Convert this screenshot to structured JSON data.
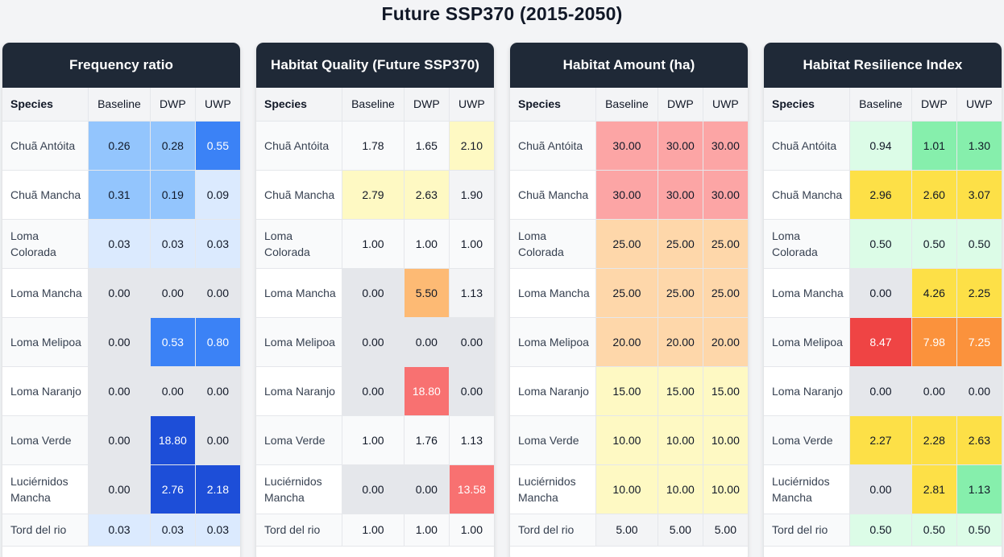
{
  "title": "Future SSP370 (2015-2050)",
  "columns": [
    "Species",
    "Baseline",
    "DWP",
    "UWP"
  ],
  "species": [
    "Chuã Antóita",
    "Chuã Mancha",
    "Loma Colorada",
    "Loma Mancha",
    "Loma Melipoa",
    "Loma Naranjo",
    "Loma Verde",
    "Luciérnidos Mancha",
    "Tord del rio"
  ],
  "panels": [
    {
      "title": "Frequency ratio",
      "rows": [
        {
          "values": [
            "0.26",
            "0.28",
            "0.55"
          ],
          "colors": [
            "#93c5fd",
            "#93c5fd",
            "#3b82f6"
          ]
        },
        {
          "values": [
            "0.31",
            "0.19",
            "0.09"
          ],
          "colors": [
            "#93c5fd",
            "#93c5fd",
            "#dbeafe"
          ]
        },
        {
          "values": [
            "0.03",
            "0.03",
            "0.03"
          ],
          "colors": [
            "#dbeafe",
            "#dbeafe",
            "#dbeafe"
          ]
        },
        {
          "values": [
            "0.00",
            "0.00",
            "0.00"
          ],
          "colors": [
            "#e5e7eb",
            "#e5e7eb",
            "#e5e7eb"
          ]
        },
        {
          "values": [
            "0.00",
            "0.53",
            "0.80"
          ],
          "colors": [
            "#e5e7eb",
            "#3b82f6",
            "#3b82f6"
          ]
        },
        {
          "values": [
            "0.00",
            "0.00",
            "0.00"
          ],
          "colors": [
            "#e5e7eb",
            "#e5e7eb",
            "#e5e7eb"
          ]
        },
        {
          "values": [
            "0.00",
            "18.80",
            "0.00"
          ],
          "colors": [
            "#e5e7eb",
            "#1d4ed8",
            "#e5e7eb"
          ]
        },
        {
          "values": [
            "0.00",
            "2.76",
            "2.18"
          ],
          "colors": [
            "#e5e7eb",
            "#1d4ed8",
            "#1d4ed8"
          ]
        },
        {
          "values": [
            "0.03",
            "0.03",
            "0.03"
          ],
          "colors": [
            "#dbeafe",
            "#dbeafe",
            "#dbeafe"
          ]
        }
      ]
    },
    {
      "title": "Habitat Quality (Future SSP370)",
      "rows": [
        {
          "values": [
            "1.78",
            "1.65",
            "2.10"
          ],
          "colors": [
            "#f9fafb",
            "#f9fafb",
            "#fef9c3"
          ]
        },
        {
          "values": [
            "2.79",
            "2.63",
            "1.90"
          ],
          "colors": [
            "#fef9c3",
            "#fef9c3",
            "#f3f4f6"
          ]
        },
        {
          "values": [
            "1.00",
            "1.00",
            "1.00"
          ],
          "colors": [
            "#f9fafb",
            "#f9fafb",
            "#f9fafb"
          ]
        },
        {
          "values": [
            "0.00",
            "5.50",
            "1.13"
          ],
          "colors": [
            "#e5e7eb",
            "#fdba74",
            "#f3f4f6"
          ]
        },
        {
          "values": [
            "0.00",
            "0.00",
            "0.00"
          ],
          "colors": [
            "#e5e7eb",
            "#e5e7eb",
            "#e5e7eb"
          ]
        },
        {
          "values": [
            "0.00",
            "18.80",
            "0.00"
          ],
          "colors": [
            "#e5e7eb",
            "#f87171",
            "#e5e7eb"
          ]
        },
        {
          "values": [
            "1.00",
            "1.76",
            "1.13"
          ],
          "colors": [
            "#f9fafb",
            "#f9fafb",
            "#f9fafb"
          ]
        },
        {
          "values": [
            "0.00",
            "0.00",
            "13.58"
          ],
          "colors": [
            "#e5e7eb",
            "#e5e7eb",
            "#f87171"
          ]
        },
        {
          "values": [
            "1.00",
            "1.00",
            "1.00"
          ],
          "colors": [
            "#f9fafb",
            "#f9fafb",
            "#f9fafb"
          ]
        }
      ]
    },
    {
      "title": "Habitat Amount (ha)",
      "rows": [
        {
          "values": [
            "30.00",
            "30.00",
            "30.00"
          ],
          "colors": [
            "#fca5a5",
            "#fca5a5",
            "#fca5a5"
          ]
        },
        {
          "values": [
            "30.00",
            "30.00",
            "30.00"
          ],
          "colors": [
            "#fca5a5",
            "#fca5a5",
            "#fca5a5"
          ]
        },
        {
          "values": [
            "25.00",
            "25.00",
            "25.00"
          ],
          "colors": [
            "#fed7aa",
            "#fed7aa",
            "#fed7aa"
          ]
        },
        {
          "values": [
            "25.00",
            "25.00",
            "25.00"
          ],
          "colors": [
            "#fed7aa",
            "#fed7aa",
            "#fed7aa"
          ]
        },
        {
          "values": [
            "20.00",
            "20.00",
            "20.00"
          ],
          "colors": [
            "#fed7aa",
            "#fed7aa",
            "#fed7aa"
          ]
        },
        {
          "values": [
            "15.00",
            "15.00",
            "15.00"
          ],
          "colors": [
            "#fef9c3",
            "#fef9c3",
            "#fef9c3"
          ]
        },
        {
          "values": [
            "10.00",
            "10.00",
            "10.00"
          ],
          "colors": [
            "#fef9c3",
            "#fef9c3",
            "#fef9c3"
          ]
        },
        {
          "values": [
            "10.00",
            "10.00",
            "10.00"
          ],
          "colors": [
            "#fef9c3",
            "#fef9c3",
            "#fef9c3"
          ]
        },
        {
          "values": [
            "5.00",
            "5.00",
            "5.00"
          ],
          "colors": [
            "#f3f4f6",
            "#f3f4f6",
            "#f3f4f6"
          ]
        }
      ]
    },
    {
      "title": "Habitat Resilience Index",
      "rows": [
        {
          "values": [
            "0.94",
            "1.01",
            "1.30"
          ],
          "colors": [
            "#dcfce7",
            "#86efac",
            "#86efac"
          ]
        },
        {
          "values": [
            "2.96",
            "2.60",
            "3.07"
          ],
          "colors": [
            "#fde047",
            "#fde047",
            "#fde047"
          ]
        },
        {
          "values": [
            "0.50",
            "0.50",
            "0.50"
          ],
          "colors": [
            "#dcfce7",
            "#dcfce7",
            "#dcfce7"
          ]
        },
        {
          "values": [
            "0.00",
            "4.26",
            "2.25"
          ],
          "colors": [
            "#e5e7eb",
            "#fde047",
            "#fde047"
          ]
        },
        {
          "values": [
            "8.47",
            "7.98",
            "7.25"
          ],
          "colors": [
            "#ef4444",
            "#fb923c",
            "#fb923c"
          ]
        },
        {
          "values": [
            "0.00",
            "0.00",
            "0.00"
          ],
          "colors": [
            "#e5e7eb",
            "#e5e7eb",
            "#e5e7eb"
          ]
        },
        {
          "values": [
            "2.27",
            "2.28",
            "2.63"
          ],
          "colors": [
            "#fde047",
            "#fde047",
            "#fde047"
          ]
        },
        {
          "values": [
            "0.00",
            "2.81",
            "1.13"
          ],
          "colors": [
            "#e5e7eb",
            "#fde047",
            "#86efac"
          ]
        },
        {
          "values": [
            "0.50",
            "0.50",
            "0.50"
          ],
          "colors": [
            "#dcfce7",
            "#dcfce7",
            "#dcfce7"
          ]
        }
      ]
    }
  ]
}
